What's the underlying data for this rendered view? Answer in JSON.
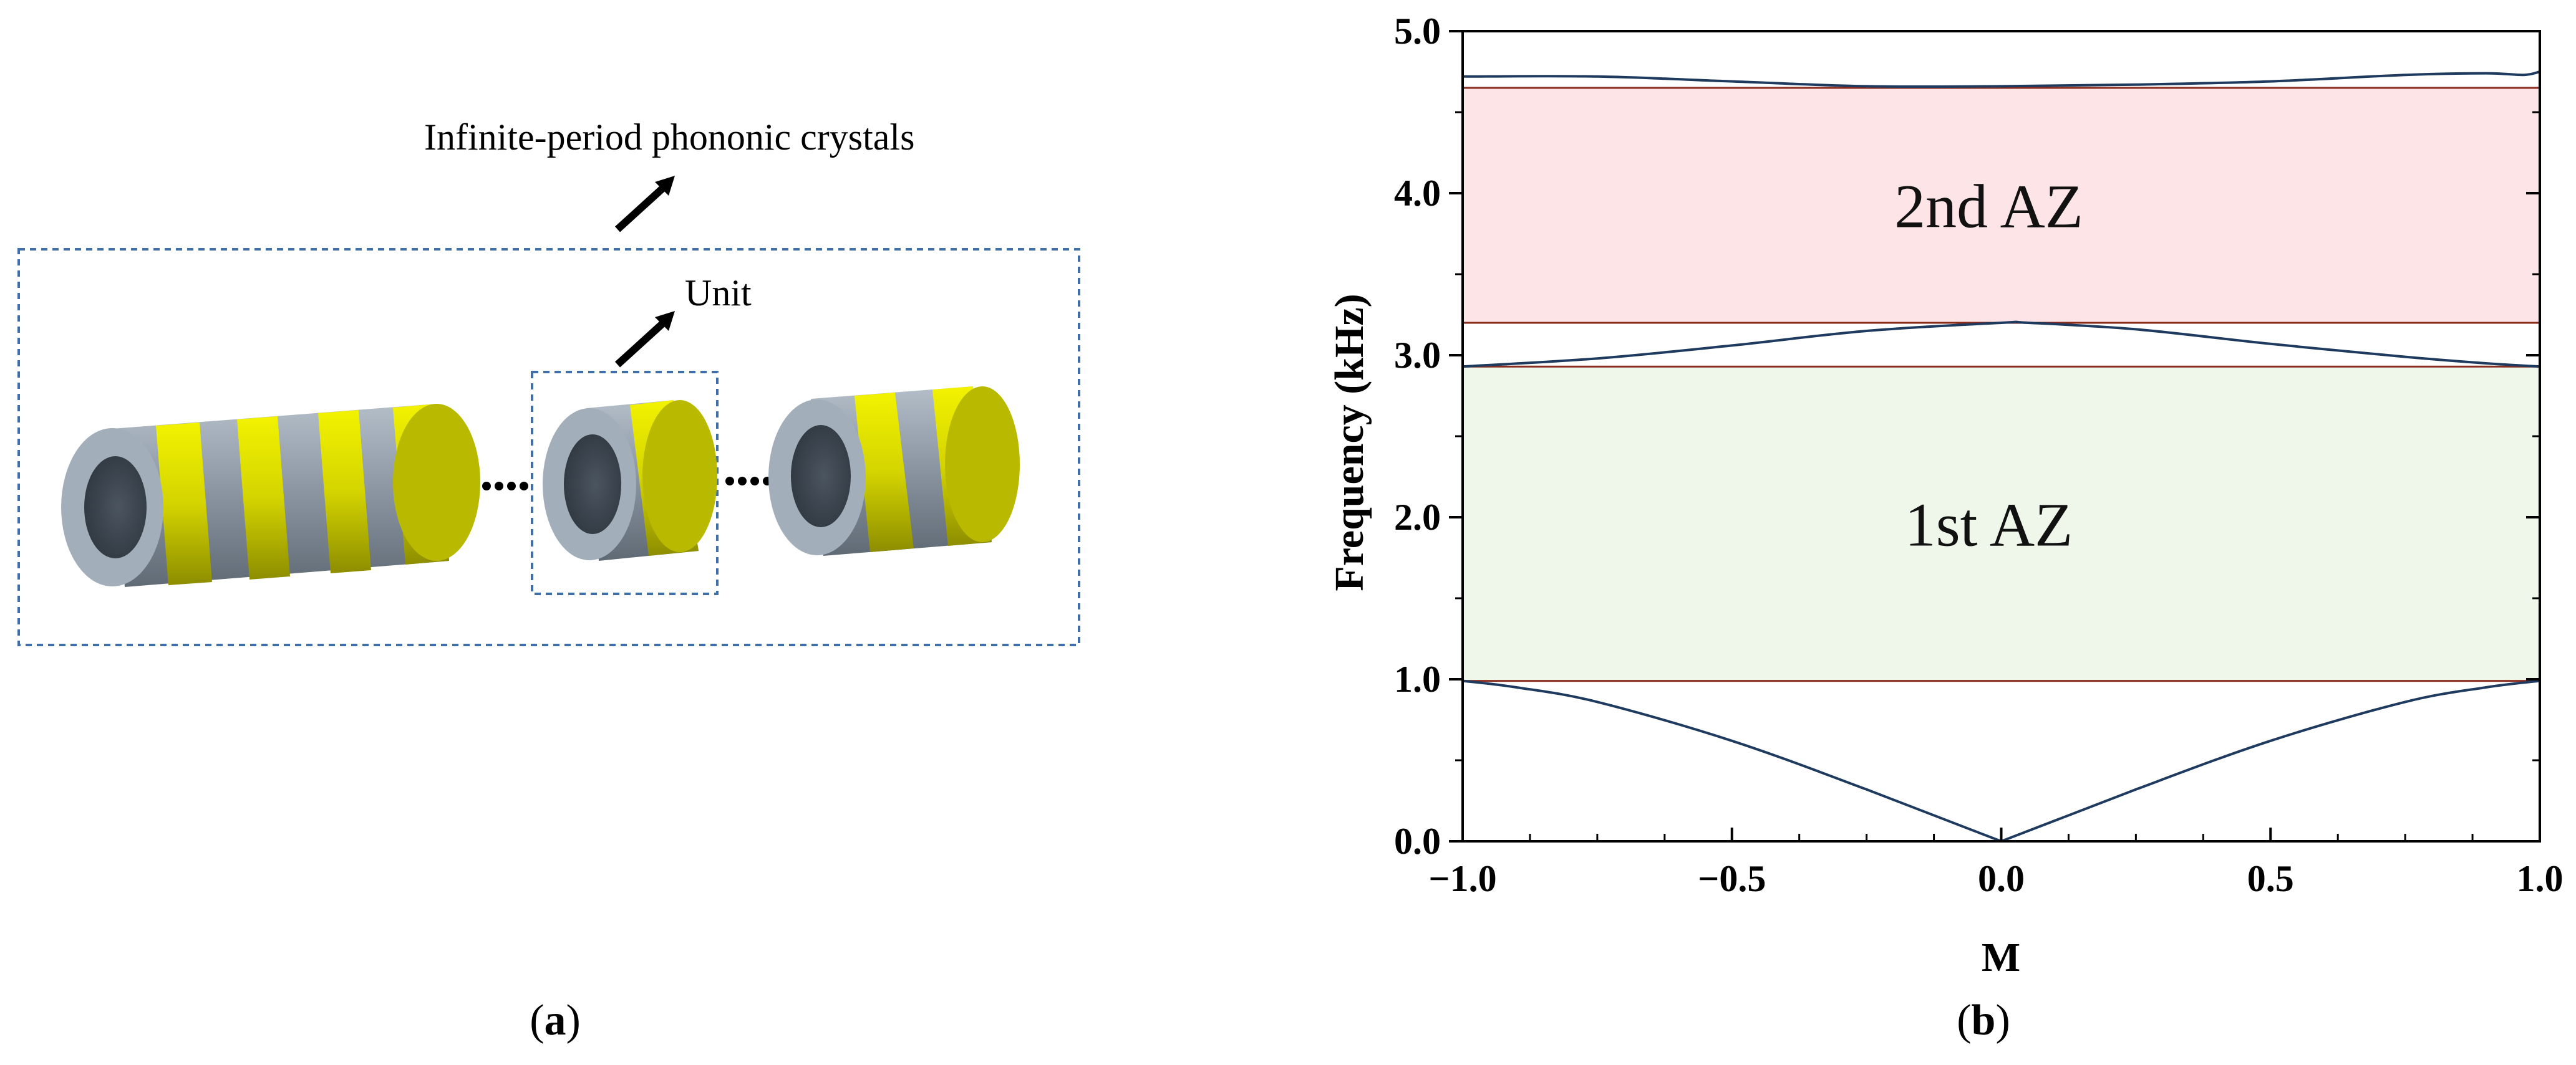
{
  "figure_a": {
    "label_open": "(",
    "label_letter": "a",
    "label_close": ")",
    "annotation_outer": "Infinite-period phononic crystals",
    "annotation_unit": "Unit",
    "colors": {
      "shell": "#8f9aa6",
      "shell_light": "#a9b6c2",
      "band": "#d7d700",
      "frame": "#3f6ea8"
    }
  },
  "figure_b": {
    "label_open": "(",
    "label_letter": "b",
    "label_close": ")"
  },
  "chart_data": {
    "type": "line",
    "title": "",
    "xlabel": "M",
    "ylabel": "Frequency (kHz)",
    "xlim": [
      -1.0,
      1.0
    ],
    "ylim": [
      0.0,
      5.0
    ],
    "x_ticks": [
      -1.0,
      -0.5,
      0.0,
      0.5,
      1.0
    ],
    "x_tick_labels": [
      "−1.0",
      "−0.5",
      "0.0",
      "0.5",
      "1.0"
    ],
    "y_ticks": [
      0.0,
      1.0,
      2.0,
      3.0,
      4.0,
      5.0
    ],
    "y_tick_labels": [
      "0.0",
      "1.0",
      "2.0",
      "3.0",
      "4.0",
      "5.0"
    ],
    "grid": false,
    "bands": [
      {
        "label": "1st AZ",
        "y0": 0.99,
        "y1": 2.93,
        "fill": "#eef7ea",
        "edge": "#8b2e1f"
      },
      {
        "label": "2nd AZ",
        "y0": 3.2,
        "y1": 4.65,
        "fill": "#fde4e7",
        "edge": "#8b2e1f"
      }
    ],
    "series": [
      {
        "color": "#1f3a5f",
        "x": [
          -1.0,
          -0.9,
          -0.75,
          -0.5,
          -0.25,
          0.0,
          0.25,
          0.5,
          0.75,
          0.9,
          1.0
        ],
        "y": [
          0.99,
          0.95,
          0.86,
          0.62,
          0.32,
          0.0,
          0.32,
          0.62,
          0.86,
          0.95,
          0.99
        ]
      },
      {
        "color": "#1f3a5f",
        "x": [
          -1.0,
          -0.75,
          -0.5,
          -0.25,
          0.0,
          0.05,
          0.25,
          0.5,
          0.75,
          0.9,
          1.0
        ],
        "y": [
          2.93,
          2.98,
          3.06,
          3.15,
          3.2,
          3.2,
          3.16,
          3.07,
          2.99,
          2.95,
          2.93
        ]
      },
      {
        "color": "#1f3a5f",
        "x": [
          -1.0,
          -0.75,
          -0.5,
          -0.25,
          0.0,
          0.25,
          0.5,
          0.75,
          0.9,
          0.97,
          1.0
        ],
        "y": [
          4.72,
          4.72,
          4.69,
          4.66,
          4.66,
          4.67,
          4.69,
          4.73,
          4.74,
          4.73,
          4.75
        ]
      }
    ]
  }
}
